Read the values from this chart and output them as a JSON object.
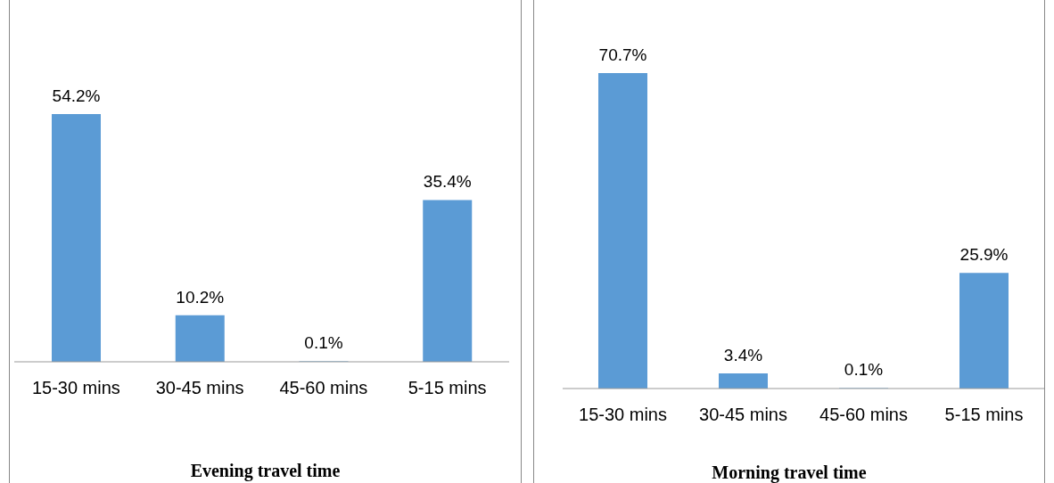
{
  "chart_data": [
    {
      "type": "bar",
      "title": "Evening travel time",
      "categories": [
        "15-30 mins",
        "30-45 mins",
        "45-60 mins",
        "5-15 mins"
      ],
      "values": [
        54.2,
        10.2,
        0.1,
        35.4
      ],
      "value_labels": [
        "54.2%",
        "10.2%",
        "0.1%",
        "35.4%"
      ],
      "color": "#5b9bd5"
    },
    {
      "type": "bar",
      "title": "Morning travel time",
      "categories": [
        "15-30 mins",
        "30-45 mins",
        "45-60 mins",
        "5-15 mins"
      ],
      "values": [
        70.7,
        3.4,
        0.1,
        25.9
      ],
      "value_labels": [
        "70.7%",
        "3.4%",
        "0.1%",
        "25.9%"
      ],
      "color": "#5b9bd5"
    }
  ]
}
